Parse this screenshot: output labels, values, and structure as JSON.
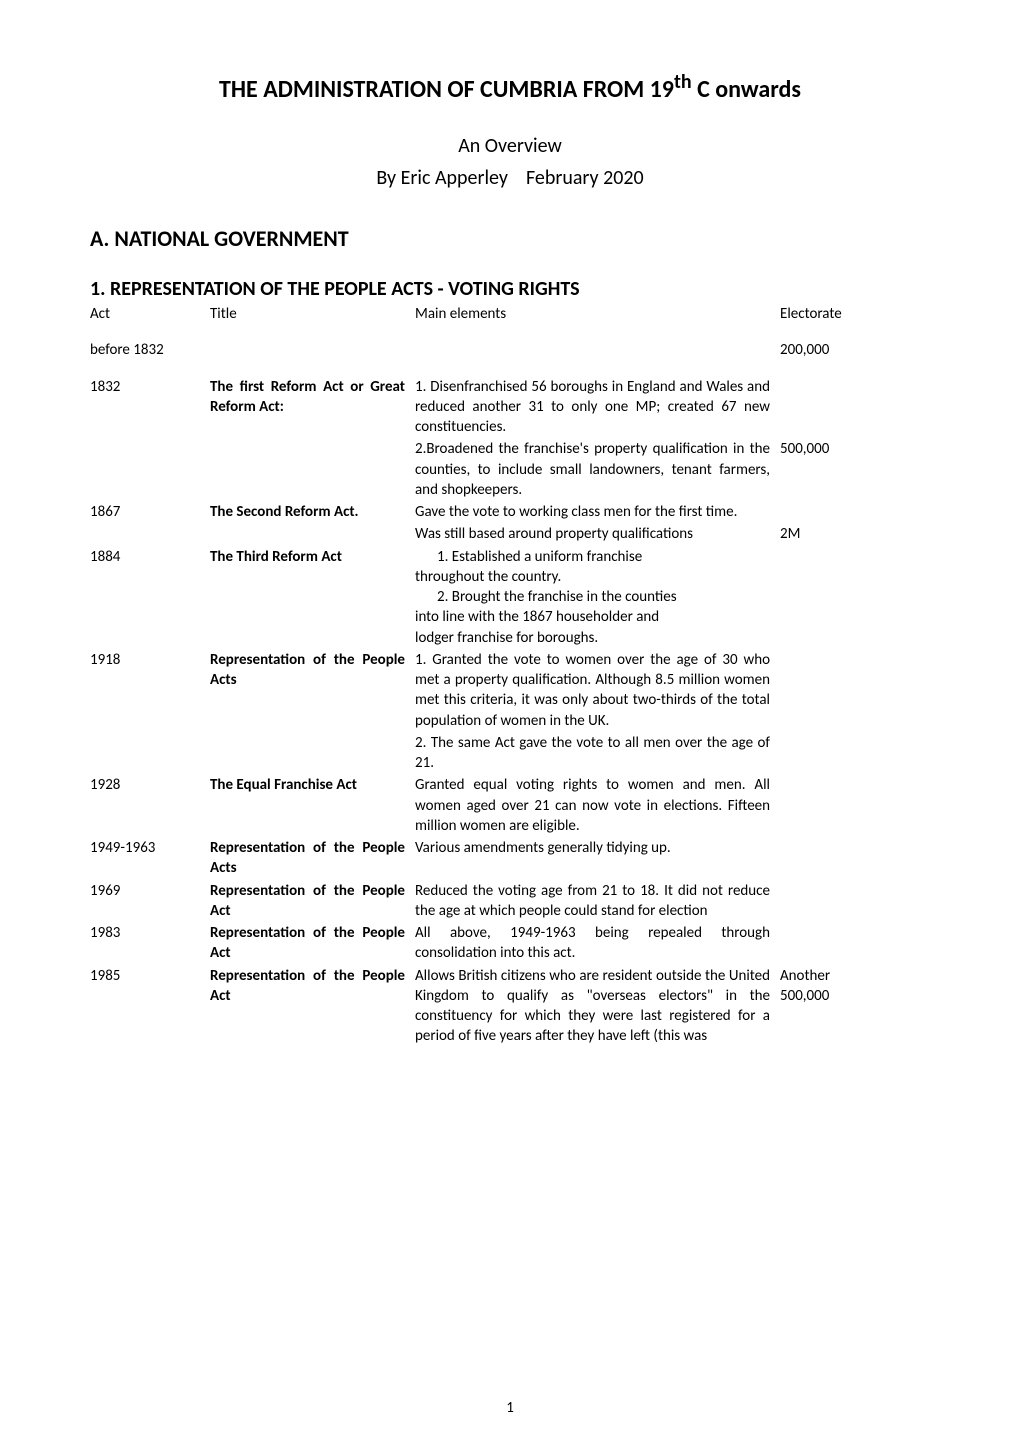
{
  "document": {
    "title_prefix": "THE ADMINISTRATION OF CUMBRIA FROM 19",
    "title_super": "th",
    "title_suffix": " C onwards",
    "subtitle": "An Overview",
    "byline_prefix": "By Eric Apperley",
    "byline_date": "February 2020",
    "section_a": "A.   NATIONAL GOVERNMENT",
    "subsection_1": "1. REPRESENTATION OF THE PEOPLE ACTS - VOTING RIGHTS",
    "page_number": "1"
  },
  "headers": {
    "act": "Act",
    "title": "Title",
    "main": "Main elements",
    "electorate": "Electorate"
  },
  "rows": [
    {
      "act": "before 1832",
      "title": "",
      "main": "",
      "electorate": "200,000",
      "title_bold": false,
      "spacer": true
    },
    {
      "act": "1832",
      "title": "The first Reform Act or Great Reform Act:",
      "main": "1. Disenfranchised 56 boroughs in England and Wales and reduced another 31 to only one MP; created 67 new constituencies.",
      "electorate": "",
      "title_bold": true
    },
    {
      "act": "",
      "title": "",
      "main": "2.Broadened the franchise's property qualification in the counties, to include small landowners, tenant farmers, and shopkeepers.",
      "electorate": "500,000",
      "title_bold": false
    },
    {
      "act": "1867",
      "title": "The Second Reform Act.",
      "main": "Gave the vote to working class men for the first time.",
      "electorate": "",
      "title_bold": true
    },
    {
      "act": "",
      "title": "",
      "main": "Was still based around property qualifications",
      "electorate": "2M",
      "title_bold": false
    },
    {
      "act": "1884",
      "title": "The Third Reform Act",
      "main": "",
      "electorate": "",
      "title_bold": true,
      "custom_main": true
    },
    {
      "act": "1918",
      "title": "Representation of the People Acts",
      "main": "1. Granted the vote to women over the age of 30 who met a property qualification. Although 8.5 million women met this criteria, it was only about two-thirds of the total population of women in the UK.",
      "electorate": "",
      "title_bold": true
    },
    {
      "act": "",
      "title": "",
      "main": "2. The same Act gave the vote to all men over the age of 21.",
      "electorate": "",
      "title_bold": false
    },
    {
      "act": "1928",
      "title": "The Equal Franchise Act",
      "main": "Granted equal voting rights to women and men. All women aged over 21 can now vote in elections. Fifteen million women are eligible.",
      "electorate": "",
      "title_bold": true
    },
    {
      "act": "1949-1963",
      "title": "Representation of the People Acts",
      "main": "Various amendments generally tidying up.",
      "electorate": "",
      "title_bold": true
    },
    {
      "act": "1969",
      "title": "Representation of the People Act",
      "main": "Reduced the voting age from 21 to 18.  It did not reduce the age at which people could stand for election",
      "electorate": "",
      "title_bold": true
    },
    {
      "act": "1983",
      "title": "Representation of the People Act",
      "main": "All above, 1949-1963 being repealed through consolidation into this act.",
      "electorate": "",
      "title_bold": true
    },
    {
      "act": "1985",
      "title": "Representation of the People Act",
      "main": "Allows British citizens who are resident outside the United Kingdom to qualify as \"overseas electors\" in the constituency for which they were last registered for a period of five years after they have left (this was",
      "electorate": "Another 500,000",
      "title_bold": true
    }
  ],
  "row_1884_main": {
    "line1_indent": "1. Established a uniform franchise",
    "line2": "throughout the country.",
    "line3_indent": "2. Brought the franchise in the counties",
    "line4": "into line with the 1867 householder and",
    "line5": "lodger franchise for boroughs."
  },
  "style": {
    "body_bg": "#ffffff",
    "text_color": "#000000",
    "title_fontsize": 24,
    "subtitle_fontsize": 20,
    "section_fontsize": 22,
    "subsection_fontsize": 20,
    "body_fontsize": 15,
    "col_act_width": 120,
    "col_title_width": 205,
    "col_main_width": 365,
    "col_elec_width": 95
  }
}
